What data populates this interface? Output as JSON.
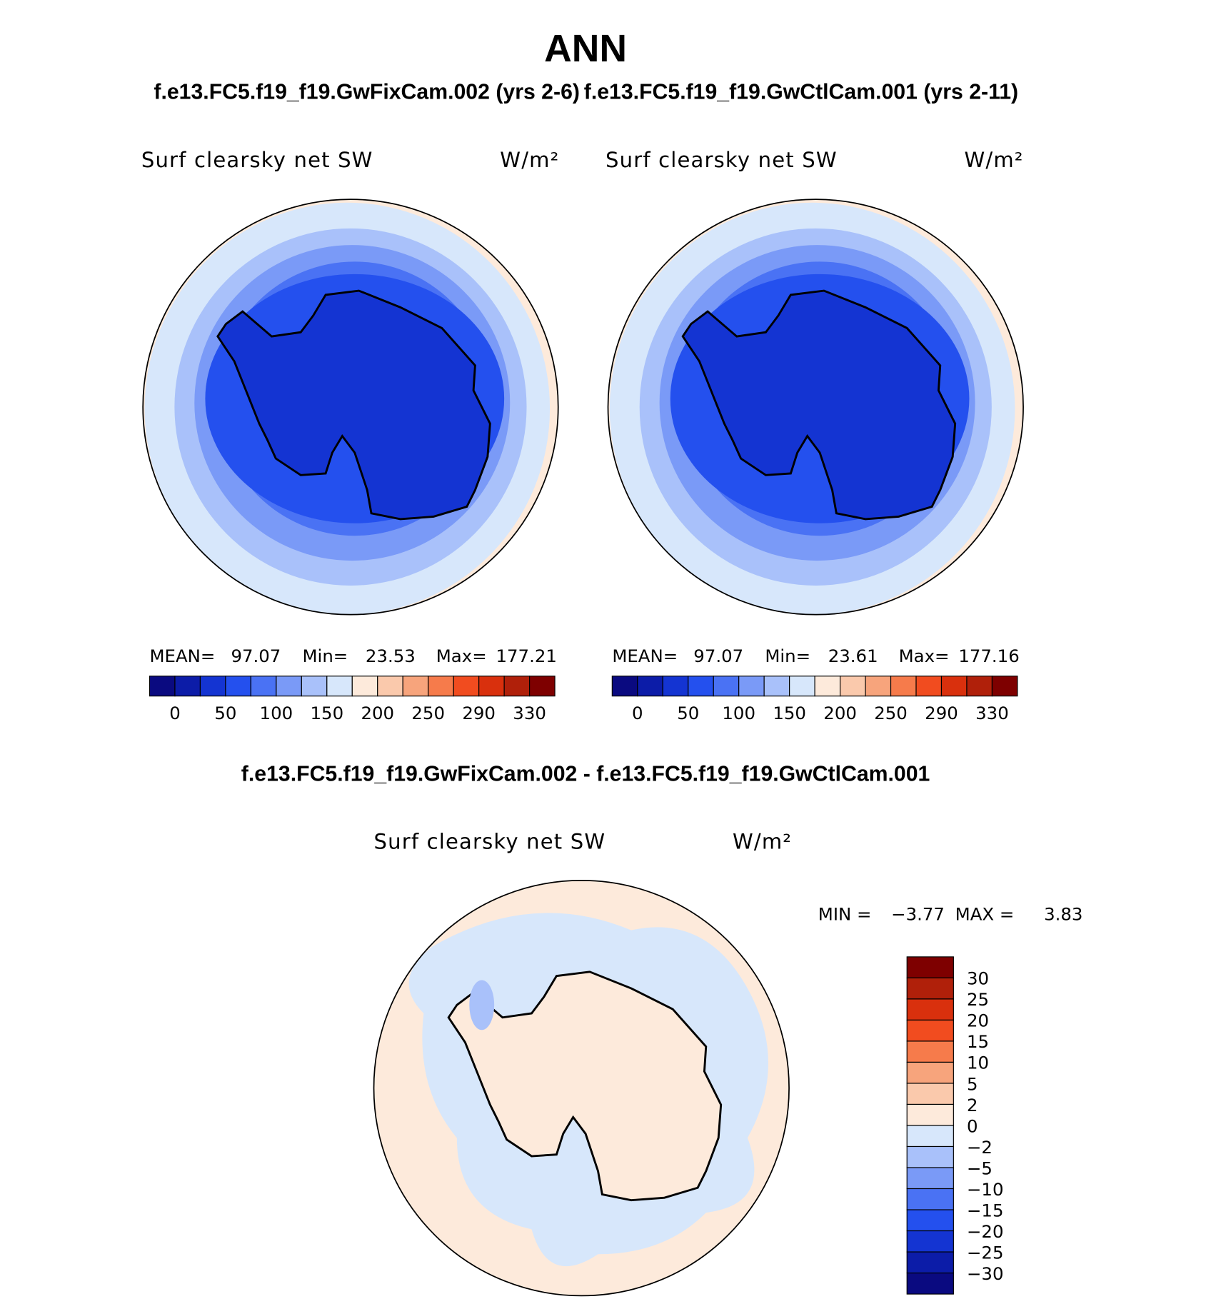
{
  "title": "ANN",
  "subtitle": {
    "left": "f.e13.FC5.f19_f19.GwFixCam.002 (yrs 2-6)",
    "right": "f.e13.FC5.f19_f19.GwCtlCam.001 (yrs 2-11)"
  },
  "panels": [
    {
      "variable": "Surf clearsky net SW",
      "units": "W/m²",
      "stats": [
        {
          "label": "MEAN=",
          "value": "97.07"
        },
        {
          "label": "Min=",
          "value": "23.53"
        },
        {
          "label": "Max=",
          "value": "177.21"
        }
      ],
      "colorbar": {
        "colors": [
          "#0a0a80",
          "#0c1ca8",
          "#1434d2",
          "#2450ee",
          "#4a72f4",
          "#7a9af7",
          "#a9c1fa",
          "#d7e7fb",
          "#fdeadb",
          "#fac9ac",
          "#f7a47c",
          "#f67b4b",
          "#f14c1f",
          "#d9300d",
          "#b0200a",
          "#7e0000"
        ],
        "labels": [
          "0",
          "50",
          "100",
          "150",
          "200",
          "250",
          "290",
          "330"
        ]
      }
    },
    {
      "variable": "Surf clearsky net SW",
      "units": "W/m²",
      "stats": [
        {
          "label": "MEAN=",
          "value": "97.07"
        },
        {
          "label": "Min=",
          "value": "23.61"
        },
        {
          "label": "Max=",
          "value": "177.16"
        }
      ],
      "colorbar": {
        "colors": [
          "#0a0a80",
          "#0c1ca8",
          "#1434d2",
          "#2450ee",
          "#4a72f4",
          "#7a9af7",
          "#a9c1fa",
          "#d7e7fb",
          "#fdeadb",
          "#fac9ac",
          "#f7a47c",
          "#f67b4b",
          "#f14c1f",
          "#d9300d",
          "#b0200a",
          "#7e0000"
        ],
        "labels": [
          "0",
          "50",
          "100",
          "150",
          "200",
          "250",
          "290",
          "330"
        ]
      }
    }
  ],
  "difference": {
    "title": "f.e13.FC5.f19_f19.GwFixCam.002 - f.e13.FC5.f19_f19.GwCtlCam.001",
    "variable": "Surf clearsky net SW",
    "units": "W/m²",
    "stats": [
      {
        "label": "MIN =",
        "value": "−3.77"
      },
      {
        "label": "MAX =",
        "value": "3.83"
      }
    ],
    "colorbar": {
      "colors": [
        "#7e0000",
        "#b0200a",
        "#d9300d",
        "#f14c1f",
        "#f67b4b",
        "#f7a47c",
        "#fac9ac",
        "#fdeadb",
        "#d7e7fb",
        "#a9c1fa",
        "#7a9af7",
        "#4a72f4",
        "#2450ee",
        "#1434d2",
        "#0c1ca8",
        "#0a0a80"
      ],
      "labels": [
        "30",
        "25",
        "20",
        "15",
        "10",
        "5",
        "2",
        "0",
        "−2",
        "−5",
        "−10",
        "−15",
        "−20",
        "−25",
        "−30"
      ]
    }
  }
}
